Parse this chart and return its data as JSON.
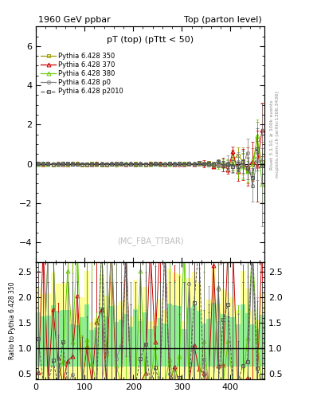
{
  "title_left": "1960 GeV ppbar",
  "title_right": "Top (parton level)",
  "plot_title": "pT (top) (pTtt < 50)",
  "watermark": "(MC_FBA_TTBAR)",
  "right_label": "Rivet 3.1.10, ≥ 100k events",
  "right_label2": "mcplots.cern.ch [arXiv:1306.3436]",
  "ylabel_ratio": "Ratio to Pythia 6.428 350",
  "xlim": [
    0,
    470
  ],
  "ylim_main": [
    -5,
    7
  ],
  "ylim_ratio": [
    0.38,
    2.7
  ],
  "yticks_main": [
    -4,
    -2,
    0,
    2,
    4,
    6
  ],
  "yticks_ratio": [
    0.5,
    1.0,
    1.5,
    2.0,
    2.5
  ],
  "series": [
    {
      "label": "Pythia 6.428 350",
      "color": "#999900",
      "marker": "s",
      "linestyle": "-",
      "ms": 3.0
    },
    {
      "label": "Pythia 6.428 370",
      "color": "#cc0000",
      "marker": "^",
      "linestyle": "-",
      "ms": 3.5
    },
    {
      "label": "Pythia 6.428 380",
      "color": "#66cc00",
      "marker": "^",
      "linestyle": "-",
      "ms": 3.5
    },
    {
      "label": "Pythia 6.428 p0",
      "color": "#888888",
      "marker": "o",
      "linestyle": "-",
      "ms": 3.0
    },
    {
      "label": "Pythia 6.428 p2010",
      "color": "#555555",
      "marker": "s",
      "linestyle": "--",
      "ms": 2.5
    }
  ],
  "n_bins": 47,
  "x_max": 470,
  "spread_power": 4.0,
  "spread_scale": 1.5,
  "spread_threshold": 0.55
}
